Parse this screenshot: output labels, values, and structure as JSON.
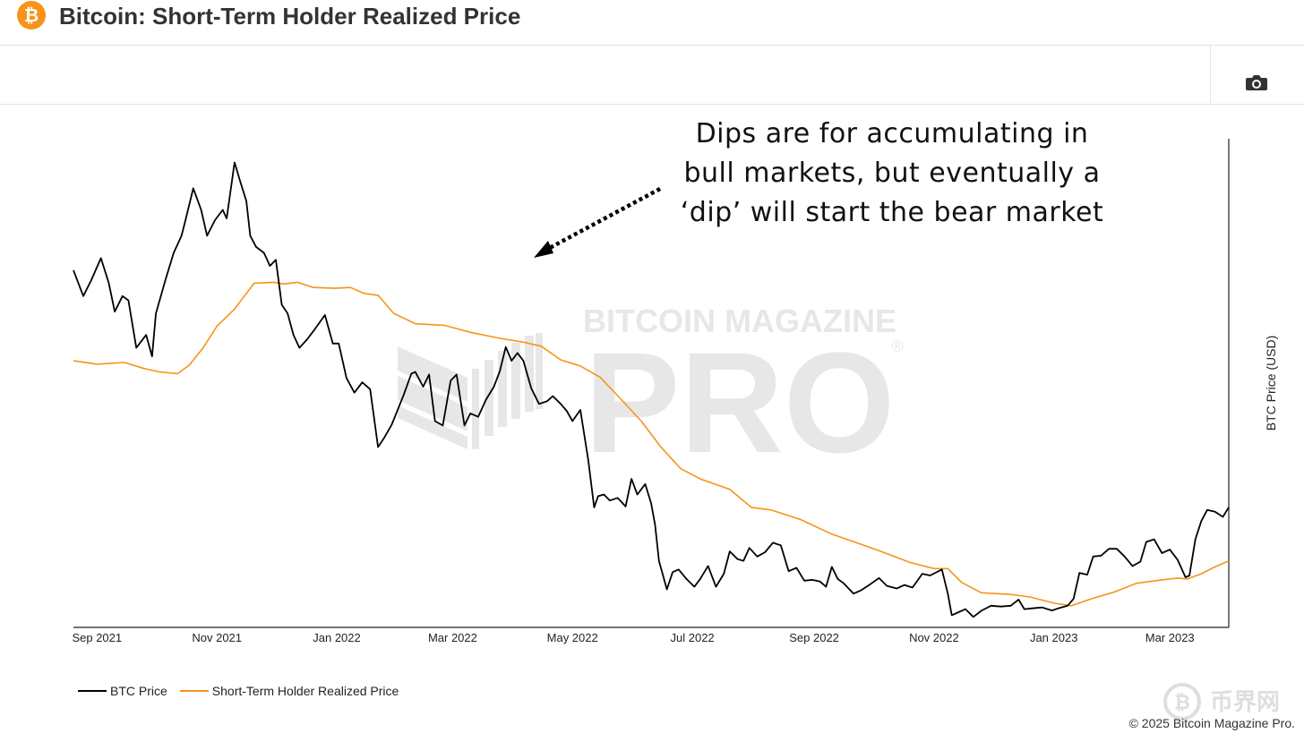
{
  "header": {
    "title": "Bitcoin: Short-Term Holder Realized Price",
    "logo_glyph": "₿",
    "logo_color": "#f7931a"
  },
  "toolbar": {
    "camera_icon": "camera-icon"
  },
  "watermark": {
    "line1": "BITCOIN MAGAZINE",
    "line2": "PRO",
    "registered": "®",
    "corner_text": "币界网"
  },
  "annotation": {
    "lines": [
      "Dips are for accumulating in",
      "bull markets, but eventually a",
      "‘dip’ will start the bear market"
    ]
  },
  "footer": {
    "copyright": "© 2025 Bitcoin Magazine Pro."
  },
  "chart_data": {
    "type": "line",
    "title": "Bitcoin: Short-Term Holder Realized Price",
    "xlabel": "",
    "ylabel": "BTC Price (USD)",
    "xlim": [
      "2021-08-20",
      "2023-03-31"
    ],
    "ylim": [
      15000,
      70000
    ],
    "x_ticks": [
      "Sep 2021",
      "Nov 2021",
      "Jan 2022",
      "Mar 2022",
      "May 2022",
      "Jul 2022",
      "Sep 2022",
      "Nov 2022",
      "Jan 2023",
      "Mar 2023"
    ],
    "x_tick_dates": [
      "2021-09-01",
      "2021-11-01",
      "2022-01-01",
      "2022-03-01",
      "2022-05-01",
      "2022-07-01",
      "2022-09-01",
      "2022-11-01",
      "2023-01-01",
      "2023-03-01"
    ],
    "grid": false,
    "legend": "bottom-left",
    "series": [
      {
        "name": "BTC Price",
        "color": "#000000",
        "points": [
          [
            "2021-08-20",
            56000
          ],
          [
            "2021-08-25",
            53000
          ],
          [
            "2021-08-29",
            54800
          ],
          [
            "2021-09-03",
            57400
          ],
          [
            "2021-09-07",
            54500
          ],
          [
            "2021-09-10",
            51200
          ],
          [
            "2021-09-14",
            53000
          ],
          [
            "2021-09-17",
            52500
          ],
          [
            "2021-09-21",
            47000
          ],
          [
            "2021-09-26",
            48500
          ],
          [
            "2021-09-29",
            46000
          ],
          [
            "2021-10-01",
            51000
          ],
          [
            "2021-10-06",
            55000
          ],
          [
            "2021-10-10",
            58000
          ],
          [
            "2021-10-14",
            60000
          ],
          [
            "2021-10-16",
            61800
          ],
          [
            "2021-10-20",
            65500
          ],
          [
            "2021-10-24",
            63000
          ],
          [
            "2021-10-27",
            60000
          ],
          [
            "2021-10-31",
            61800
          ],
          [
            "2021-11-04",
            63000
          ],
          [
            "2021-11-06",
            62000
          ],
          [
            "2021-11-10",
            68500
          ],
          [
            "2021-11-13",
            66200
          ],
          [
            "2021-11-16",
            64000
          ],
          [
            "2021-11-18",
            60000
          ],
          [
            "2021-11-21",
            58700
          ],
          [
            "2021-11-25",
            58000
          ],
          [
            "2021-11-28",
            56500
          ],
          [
            "2021-12-01",
            57200
          ],
          [
            "2021-12-04",
            52000
          ],
          [
            "2021-12-07",
            51000
          ],
          [
            "2021-12-10",
            48500
          ],
          [
            "2021-12-13",
            47000
          ],
          [
            "2021-12-17",
            48000
          ],
          [
            "2021-12-21",
            49200
          ],
          [
            "2021-12-26",
            50800
          ],
          [
            "2021-12-30",
            47500
          ],
          [
            "2022-01-02",
            47500
          ],
          [
            "2022-01-06",
            43500
          ],
          [
            "2022-01-10",
            41800
          ],
          [
            "2022-01-14",
            43000
          ],
          [
            "2022-01-18",
            42200
          ],
          [
            "2022-01-22",
            35500
          ],
          [
            "2022-01-25",
            36500
          ],
          [
            "2022-01-29",
            38100
          ],
          [
            "2022-02-04",
            41500
          ],
          [
            "2022-02-08",
            44000
          ],
          [
            "2022-02-10",
            44200
          ],
          [
            "2022-02-14",
            42500
          ],
          [
            "2022-02-17",
            43900
          ],
          [
            "2022-02-20",
            38500
          ],
          [
            "2022-02-24",
            38000
          ],
          [
            "2022-02-28",
            43200
          ],
          [
            "2022-03-03",
            43900
          ],
          [
            "2022-03-07",
            38000
          ],
          [
            "2022-03-10",
            39400
          ],
          [
            "2022-03-14",
            39000
          ],
          [
            "2022-03-18",
            41000
          ],
          [
            "2022-03-22",
            42500
          ],
          [
            "2022-03-25",
            44300
          ],
          [
            "2022-03-28",
            47100
          ],
          [
            "2022-03-31",
            45500
          ],
          [
            "2022-04-03",
            46400
          ],
          [
            "2022-04-06",
            45500
          ],
          [
            "2022-04-10",
            42300
          ],
          [
            "2022-04-14",
            40500
          ],
          [
            "2022-04-18",
            40800
          ],
          [
            "2022-04-21",
            41400
          ],
          [
            "2022-04-25",
            40500
          ],
          [
            "2022-04-28",
            39700
          ],
          [
            "2022-05-01",
            38500
          ],
          [
            "2022-05-05",
            39800
          ],
          [
            "2022-05-09",
            34000
          ],
          [
            "2022-05-12",
            28500
          ],
          [
            "2022-05-14",
            29800
          ],
          [
            "2022-05-17",
            30000
          ],
          [
            "2022-05-20",
            29300
          ],
          [
            "2022-05-24",
            29600
          ],
          [
            "2022-05-28",
            28600
          ],
          [
            "2022-05-31",
            31800
          ],
          [
            "2022-06-03",
            30000
          ],
          [
            "2022-06-07",
            31200
          ],
          [
            "2022-06-10",
            29000
          ],
          [
            "2022-06-12",
            26500
          ],
          [
            "2022-06-14",
            22300
          ],
          [
            "2022-06-18",
            19000
          ],
          [
            "2022-06-21",
            21000
          ],
          [
            "2022-06-24",
            21300
          ],
          [
            "2022-06-28",
            20200
          ],
          [
            "2022-07-02",
            19300
          ],
          [
            "2022-07-05",
            20200
          ],
          [
            "2022-07-09",
            21700
          ],
          [
            "2022-07-13",
            19300
          ],
          [
            "2022-07-17",
            20800
          ],
          [
            "2022-07-20",
            23400
          ],
          [
            "2022-07-24",
            22500
          ],
          [
            "2022-07-27",
            22300
          ],
          [
            "2022-07-30",
            23800
          ],
          [
            "2022-08-03",
            22800
          ],
          [
            "2022-08-07",
            23300
          ],
          [
            "2022-08-11",
            24400
          ],
          [
            "2022-08-15",
            24100
          ],
          [
            "2022-08-19",
            21100
          ],
          [
            "2022-08-23",
            21500
          ],
          [
            "2022-08-27",
            20000
          ],
          [
            "2022-08-31",
            20100
          ],
          [
            "2022-09-04",
            19900
          ],
          [
            "2022-09-07",
            19300
          ],
          [
            "2022-09-10",
            21600
          ],
          [
            "2022-09-13",
            20200
          ],
          [
            "2022-09-16",
            19700
          ],
          [
            "2022-09-21",
            18500
          ],
          [
            "2022-09-25",
            18900
          ],
          [
            "2022-09-29",
            19500
          ],
          [
            "2022-10-04",
            20300
          ],
          [
            "2022-10-08",
            19400
          ],
          [
            "2022-10-13",
            19100
          ],
          [
            "2022-10-17",
            19500
          ],
          [
            "2022-10-21",
            19200
          ],
          [
            "2022-10-26",
            20800
          ],
          [
            "2022-10-30",
            20600
          ],
          [
            "2022-11-05",
            21300
          ],
          [
            "2022-11-08",
            18500
          ],
          [
            "2022-11-10",
            16000
          ],
          [
            "2022-11-13",
            16300
          ],
          [
            "2022-11-17",
            16700
          ],
          [
            "2022-11-21",
            15800
          ],
          [
            "2022-11-25",
            16500
          ],
          [
            "2022-11-30",
            17100
          ],
          [
            "2022-12-05",
            17000
          ],
          [
            "2022-12-10",
            17100
          ],
          [
            "2022-12-14",
            17800
          ],
          [
            "2022-12-17",
            16700
          ],
          [
            "2022-12-21",
            16800
          ],
          [
            "2022-12-26",
            16900
          ],
          [
            "2022-12-31",
            16550
          ],
          [
            "2023-01-04",
            16850
          ],
          [
            "2023-01-08",
            17100
          ],
          [
            "2023-01-11",
            17900
          ],
          [
            "2023-01-14",
            20900
          ],
          [
            "2023-01-18",
            20700
          ],
          [
            "2023-01-21",
            22800
          ],
          [
            "2023-01-25",
            22900
          ],
          [
            "2023-01-29",
            23700
          ],
          [
            "2023-02-02",
            23700
          ],
          [
            "2023-02-06",
            22800
          ],
          [
            "2023-02-10",
            21700
          ],
          [
            "2023-02-14",
            22200
          ],
          [
            "2023-02-17",
            24500
          ],
          [
            "2023-02-21",
            24800
          ],
          [
            "2023-02-25",
            23200
          ],
          [
            "2023-03-01",
            23600
          ],
          [
            "2023-03-05",
            22400
          ],
          [
            "2023-03-09",
            20400
          ],
          [
            "2023-03-11",
            20600
          ],
          [
            "2023-03-14",
            24800
          ],
          [
            "2023-03-17",
            26900
          ],
          [
            "2023-03-20",
            28200
          ],
          [
            "2023-03-24",
            28000
          ],
          [
            "2023-03-28",
            27400
          ],
          [
            "2023-03-31",
            28500
          ]
        ]
      },
      {
        "name": "Short-Term Holder Realized Price",
        "color": "#f7931a",
        "points": [
          [
            "2021-08-20",
            45500
          ],
          [
            "2021-09-01",
            45100
          ],
          [
            "2021-09-15",
            45300
          ],
          [
            "2021-09-25",
            44600
          ],
          [
            "2021-10-03",
            44200
          ],
          [
            "2021-10-12",
            44000
          ],
          [
            "2021-10-18",
            45000
          ],
          [
            "2021-10-25",
            47000
          ],
          [
            "2021-11-01",
            49500
          ],
          [
            "2021-11-10",
            51500
          ],
          [
            "2021-11-20",
            54500
          ],
          [
            "2021-11-30",
            54600
          ],
          [
            "2021-12-05",
            54400
          ],
          [
            "2021-12-12",
            54600
          ],
          [
            "2021-12-20",
            54000
          ],
          [
            "2021-12-31",
            53900
          ],
          [
            "2022-01-08",
            54000
          ],
          [
            "2022-01-15",
            53300
          ],
          [
            "2022-01-22",
            53100
          ],
          [
            "2022-01-30",
            51000
          ],
          [
            "2022-02-10",
            49800
          ],
          [
            "2022-02-25",
            49600
          ],
          [
            "2022-03-10",
            48800
          ],
          [
            "2022-03-25",
            48100
          ],
          [
            "2022-04-05",
            47700
          ],
          [
            "2022-04-15",
            47200
          ],
          [
            "2022-04-25",
            45600
          ],
          [
            "2022-05-05",
            44900
          ],
          [
            "2022-05-15",
            43600
          ],
          [
            "2022-05-25",
            41200
          ],
          [
            "2022-06-05",
            38500
          ],
          [
            "2022-06-15",
            35500
          ],
          [
            "2022-06-25",
            33000
          ],
          [
            "2022-07-05",
            31800
          ],
          [
            "2022-07-20",
            30600
          ],
          [
            "2022-07-31",
            28500
          ],
          [
            "2022-08-10",
            28200
          ],
          [
            "2022-08-25",
            27100
          ],
          [
            "2022-09-10",
            25400
          ],
          [
            "2022-09-25",
            24200
          ],
          [
            "2022-10-05",
            23400
          ],
          [
            "2022-10-20",
            22100
          ],
          [
            "2022-11-01",
            21400
          ],
          [
            "2022-11-08",
            21400
          ],
          [
            "2022-11-15",
            19800
          ],
          [
            "2022-11-25",
            18600
          ],
          [
            "2022-12-10",
            18400
          ],
          [
            "2022-12-20",
            18100
          ],
          [
            "2023-01-01",
            17400
          ],
          [
            "2023-01-10",
            17100
          ],
          [
            "2023-01-20",
            17900
          ],
          [
            "2023-02-01",
            18700
          ],
          [
            "2023-02-12",
            19700
          ],
          [
            "2023-02-25",
            20100
          ],
          [
            "2023-03-05",
            20300
          ],
          [
            "2023-03-10",
            20200
          ],
          [
            "2023-03-17",
            20800
          ],
          [
            "2023-03-24",
            21600
          ],
          [
            "2023-03-31",
            22300
          ]
        ]
      }
    ]
  }
}
